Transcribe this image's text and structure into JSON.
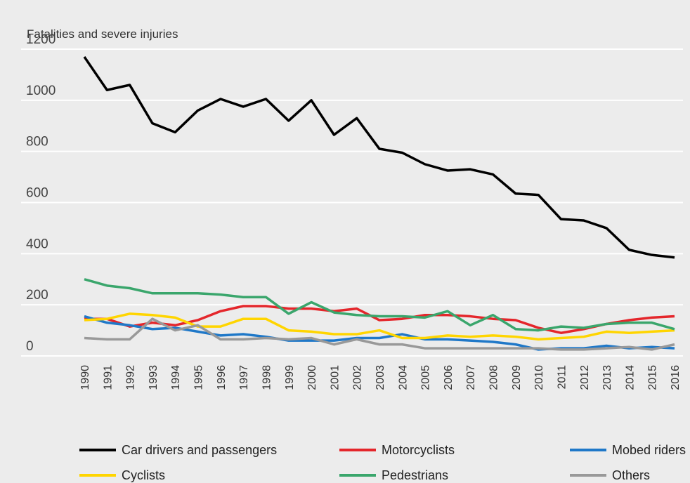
{
  "chart_data": {
    "type": "line",
    "title": "Fatalities and severe injuries",
    "x": [
      1990,
      1991,
      1992,
      1993,
      1994,
      1995,
      1996,
      1997,
      1998,
      1999,
      2000,
      2001,
      2002,
      2003,
      2004,
      2005,
      2006,
      2007,
      2008,
      2009,
      2010,
      2011,
      2012,
      2013,
      2014,
      2015,
      2016
    ],
    "ylim": [
      0,
      1200
    ],
    "yticks": [
      0,
      200,
      400,
      600,
      800,
      1000,
      1200
    ],
    "grid": true,
    "series": [
      {
        "name": "Car drivers and passengers",
        "color": "#000000",
        "values": [
          1170,
          1040,
          1060,
          910,
          875,
          960,
          1005,
          975,
          1005,
          920,
          1000,
          865,
          930,
          810,
          795,
          750,
          725,
          730,
          710,
          635,
          630,
          535,
          530,
          500,
          415,
          395,
          385
        ]
      },
      {
        "name": "Motorcyclists",
        "color": "#e4262b",
        "values": [
          145,
          145,
          115,
          130,
          120,
          140,
          175,
          195,
          195,
          185,
          185,
          175,
          185,
          140,
          145,
          160,
          160,
          155,
          145,
          140,
          110,
          90,
          105,
          125,
          140,
          150,
          155
        ]
      },
      {
        "name": "Mobed riders",
        "color": "#1f78c8",
        "values": [
          155,
          130,
          120,
          105,
          110,
          95,
          80,
          85,
          75,
          60,
          60,
          60,
          70,
          70,
          85,
          65,
          65,
          60,
          55,
          45,
          25,
          30,
          30,
          40,
          30,
          35,
          30
        ]
      },
      {
        "name": "Cyclists",
        "color": "#ffd500",
        "values": [
          140,
          145,
          165,
          160,
          150,
          115,
          115,
          145,
          145,
          100,
          95,
          85,
          85,
          100,
          70,
          70,
          80,
          75,
          80,
          75,
          65,
          70,
          75,
          95,
          90,
          95,
          100
        ]
      },
      {
        "name": "Pedestrians",
        "color": "#3aa66c",
        "values": [
          300,
          275,
          265,
          245,
          245,
          245,
          240,
          230,
          230,
          165,
          210,
          170,
          160,
          155,
          155,
          150,
          175,
          120,
          160,
          105,
          100,
          115,
          110,
          125,
          130,
          130,
          105
        ]
      },
      {
        "name": "Others",
        "color": "#999999",
        "values": [
          70,
          65,
          65,
          145,
          100,
          120,
          65,
          65,
          70,
          65,
          70,
          45,
          65,
          45,
          45,
          30,
          30,
          30,
          30,
          30,
          30,
          25,
          25,
          30,
          35,
          25,
          45
        ]
      }
    ]
  }
}
